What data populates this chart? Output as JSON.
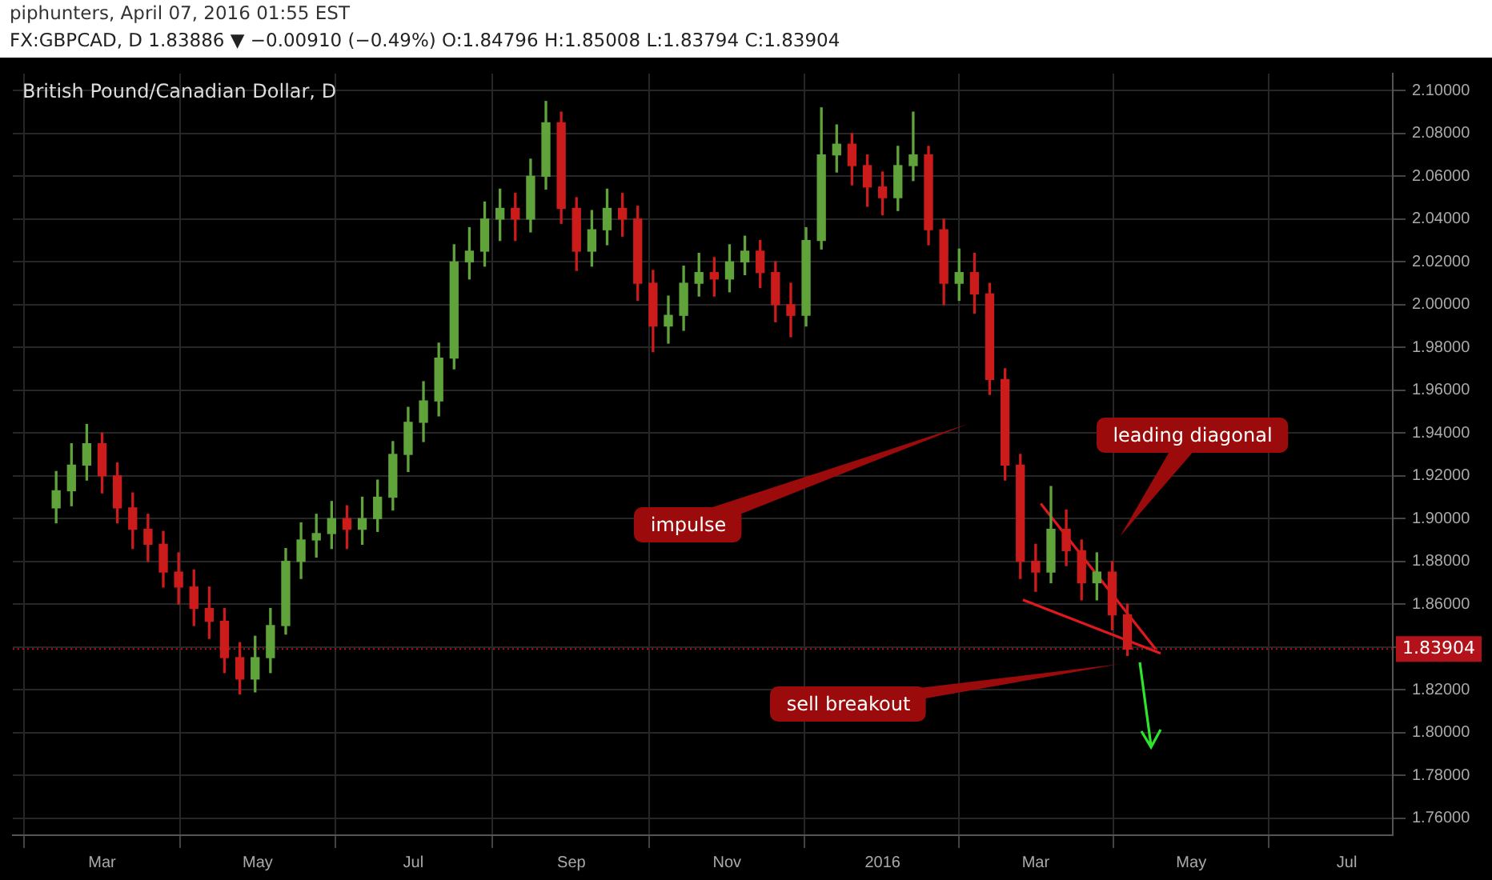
{
  "chart_data": {
    "type": "candlestick",
    "title": "FX:GBPCAD, D 1.83886 ▼ −0.00910 (−0.49%) O:1.84796 H:1.85008 L:1.83794 C:1.83904",
    "subtitle": "British Pound/Canadian Dollar, D",
    "x": [
      "2015-02-11",
      "2015-02-17",
      "2015-02-23",
      "2015-03-01",
      "2015-03-07",
      "2015-03-13",
      "2015-03-19",
      "2015-03-25",
      "2015-03-31",
      "2015-04-06",
      "2015-04-12",
      "2015-04-18",
      "2015-04-24",
      "2015-04-30",
      "2015-05-06",
      "2015-05-12",
      "2015-05-18",
      "2015-05-24",
      "2015-05-30",
      "2015-06-05",
      "2015-06-11",
      "2015-06-17",
      "2015-06-23",
      "2015-06-29",
      "2015-07-05",
      "2015-07-11",
      "2015-07-17",
      "2015-07-23",
      "2015-07-29",
      "2015-08-04",
      "2015-08-10",
      "2015-08-16",
      "2015-08-22",
      "2015-08-28",
      "2015-09-03",
      "2015-09-09",
      "2015-09-15",
      "2015-09-21",
      "2015-09-27",
      "2015-10-03",
      "2015-10-09",
      "2015-10-15",
      "2015-10-21",
      "2015-10-27",
      "2015-11-02",
      "2015-11-08",
      "2015-11-14",
      "2015-11-20",
      "2015-11-26",
      "2015-12-02",
      "2015-12-08",
      "2015-12-14",
      "2015-12-20",
      "2015-12-26",
      "2016-01-01",
      "2016-01-07",
      "2016-01-13",
      "2016-01-19",
      "2016-01-25",
      "2016-01-31",
      "2016-02-06",
      "2016-02-12",
      "2016-02-18",
      "2016-02-24",
      "2016-03-01",
      "2016-03-07",
      "2016-03-13",
      "2016-03-19",
      "2016-03-25",
      "2016-03-31",
      "2016-04-06"
    ],
    "ohlc": [
      [
        1.905,
        1.922,
        1.898,
        1.913
      ],
      [
        1.913,
        1.935,
        1.906,
        1.925
      ],
      [
        1.925,
        1.944,
        1.918,
        1.935
      ],
      [
        1.935,
        1.94,
        1.912,
        1.92
      ],
      [
        1.92,
        1.926,
        1.898,
        1.905
      ],
      [
        1.905,
        1.912,
        1.886,
        1.895
      ],
      [
        1.895,
        1.902,
        1.88,
        1.888
      ],
      [
        1.888,
        1.894,
        1.868,
        1.875
      ],
      [
        1.875,
        1.884,
        1.86,
        1.868
      ],
      [
        1.868,
        1.876,
        1.85,
        1.858
      ],
      [
        1.858,
        1.868,
        1.844,
        1.852
      ],
      [
        1.852,
        1.858,
        1.828,
        1.835
      ],
      [
        1.835,
        1.842,
        1.818,
        1.825
      ],
      [
        1.825,
        1.845,
        1.819,
        1.835
      ],
      [
        1.835,
        1.858,
        1.828,
        1.85
      ],
      [
        1.85,
        1.886,
        1.846,
        1.88
      ],
      [
        1.88,
        1.898,
        1.872,
        1.89
      ],
      [
        1.89,
        1.902,
        1.882,
        1.893
      ],
      [
        1.893,
        1.908,
        1.886,
        1.9
      ],
      [
        1.9,
        1.906,
        1.886,
        1.895
      ],
      [
        1.895,
        1.91,
        1.888,
        1.9
      ],
      [
        1.9,
        1.918,
        1.894,
        1.91
      ],
      [
        1.91,
        1.936,
        1.904,
        1.93
      ],
      [
        1.93,
        1.952,
        1.922,
        1.945
      ],
      [
        1.945,
        1.964,
        1.936,
        1.955
      ],
      [
        1.955,
        1.982,
        1.948,
        1.975
      ],
      [
        1.975,
        2.028,
        1.97,
        2.02
      ],
      [
        2.02,
        2.036,
        2.012,
        2.025
      ],
      [
        2.025,
        2.048,
        2.018,
        2.04
      ],
      [
        2.04,
        2.054,
        2.03,
        2.045
      ],
      [
        2.045,
        2.052,
        2.03,
        2.04
      ],
      [
        2.04,
        2.068,
        2.034,
        2.06
      ],
      [
        2.06,
        2.095,
        2.054,
        2.085
      ],
      [
        2.085,
        2.09,
        2.038,
        2.045
      ],
      [
        2.045,
        2.05,
        2.016,
        2.025
      ],
      [
        2.025,
        2.044,
        2.018,
        2.035
      ],
      [
        2.035,
        2.054,
        2.028,
        2.045
      ],
      [
        2.045,
        2.052,
        2.032,
        2.04
      ],
      [
        2.04,
        2.046,
        2.002,
        2.01
      ],
      [
        2.01,
        2.016,
        1.978,
        1.99
      ],
      [
        1.99,
        2.004,
        1.982,
        1.995
      ],
      [
        1.995,
        2.018,
        1.988,
        2.01
      ],
      [
        2.01,
        2.024,
        2.004,
        2.015
      ],
      [
        2.015,
        2.022,
        2.004,
        2.012
      ],
      [
        2.012,
        2.028,
        2.006,
        2.02
      ],
      [
        2.02,
        2.032,
        2.014,
        2.025
      ],
      [
        2.025,
        2.03,
        2.008,
        2.015
      ],
      [
        2.015,
        2.02,
        1.992,
        2.0
      ],
      [
        2.0,
        2.01,
        1.985,
        1.995
      ],
      [
        1.995,
        2.036,
        1.99,
        2.03
      ],
      [
        2.03,
        2.092,
        2.026,
        2.07
      ],
      [
        2.07,
        2.084,
        2.062,
        2.075
      ],
      [
        2.075,
        2.08,
        2.056,
        2.065
      ],
      [
        2.065,
        2.07,
        2.046,
        2.055
      ],
      [
        2.055,
        2.062,
        2.042,
        2.05
      ],
      [
        2.05,
        2.074,
        2.044,
        2.065
      ],
      [
        2.065,
        2.09,
        2.058,
        2.07
      ],
      [
        2.07,
        2.074,
        2.028,
        2.035
      ],
      [
        2.035,
        2.04,
        2.0,
        2.01
      ],
      [
        2.01,
        2.026,
        2.002,
        2.015
      ],
      [
        2.015,
        2.024,
        1.996,
        2.005
      ],
      [
        2.005,
        2.01,
        1.958,
        1.965
      ],
      [
        1.965,
        1.97,
        1.918,
        1.925
      ],
      [
        1.925,
        1.93,
        1.872,
        1.88
      ],
      [
        1.88,
        1.888,
        1.866,
        1.875
      ],
      [
        1.875,
        1.915,
        1.87,
        1.895
      ],
      [
        1.895,
        1.904,
        1.878,
        1.885
      ],
      [
        1.885,
        1.89,
        1.862,
        1.87
      ],
      [
        1.87,
        1.884,
        1.862,
        1.875
      ],
      [
        1.875,
        1.88,
        1.848,
        1.855
      ],
      [
        1.855,
        1.86,
        1.836,
        1.839
      ]
    ],
    "colors": [
      "#5fa33a",
      "#5fa33a",
      "#5fa33a",
      "#cc1b1b",
      "#cc1b1b",
      "#cc1b1b",
      "#cc1b1b",
      "#cc1b1b",
      "#cc1b1b",
      "#cc1b1b",
      "#cc1b1b",
      "#cc1b1b",
      "#cc1b1b",
      "#5fa33a",
      "#5fa33a",
      "#5fa33a",
      "#5fa33a",
      "#5fa33a",
      "#5fa33a",
      "#cc1b1b",
      "#5fa33a",
      "#5fa33a",
      "#5fa33a",
      "#5fa33a",
      "#5fa33a",
      "#5fa33a",
      "#5fa33a",
      "#5fa33a",
      "#5fa33a",
      "#5fa33a",
      "#cc1b1b",
      "#5fa33a",
      "#5fa33a",
      "#cc1b1b",
      "#cc1b1b",
      "#5fa33a",
      "#5fa33a",
      "#cc1b1b",
      "#cc1b1b",
      "#cc1b1b",
      "#5fa33a",
      "#5fa33a",
      "#5fa33a",
      "#cc1b1b",
      "#5fa33a",
      "#5fa33a",
      "#cc1b1b",
      "#cc1b1b",
      "#cc1b1b",
      "#5fa33a",
      "#5fa33a",
      "#5fa33a",
      "#cc1b1b",
      "#cc1b1b",
      "#cc1b1b",
      "#5fa33a",
      "#5fa33a",
      "#cc1b1b",
      "#cc1b1b",
      "#5fa33a",
      "#cc1b1b",
      "#cc1b1b",
      "#cc1b1b",
      "#cc1b1b",
      "#cc1b1b",
      "#5fa33a",
      "#cc1b1b",
      "#cc1b1b",
      "#5fa33a",
      "#cc1b1b",
      "#cc1b1b"
    ],
    "series": [
      {
        "type": "line",
        "color": "#e0191f",
        "x": [
          "2016-03-03",
          "2016-04-17"
        ],
        "values": [
          1.907,
          1.839
        ]
      },
      {
        "type": "line",
        "color": "#e0191f",
        "x": [
          "2016-02-25",
          "2016-04-19"
        ],
        "values": [
          1.862,
          1.837
        ]
      }
    ],
    "xlim": [
      "2015-01-25",
      "2016-07-19"
    ],
    "xticks": [
      {
        "value": "2015-03-01",
        "label": "Mar"
      },
      {
        "value": "2015-05-01",
        "label": "May"
      },
      {
        "value": "2015-07-01",
        "label": "Jul"
      },
      {
        "value": "2015-09-01",
        "label": "Sep"
      },
      {
        "value": "2015-11-01",
        "label": "Nov"
      },
      {
        "value": "2016-01-01",
        "label": "2016"
      },
      {
        "value": "2016-03-01",
        "label": "Mar"
      },
      {
        "value": "2016-05-01",
        "label": "May"
      },
      {
        "value": "2016-07-01",
        "label": "Jul"
      }
    ],
    "ylim": [
      1.752,
      2.108
    ],
    "yticks": [
      {
        "value": 1.76,
        "label": "1.76000"
      },
      {
        "value": 1.78,
        "label": "1.78000"
      },
      {
        "value": 1.8,
        "label": "1.80000"
      },
      {
        "value": 1.82,
        "label": "1.82000"
      },
      {
        "value": 1.84,
        "label": null
      },
      {
        "value": 1.86,
        "label": "1.86000"
      },
      {
        "value": 1.88,
        "label": "1.88000"
      },
      {
        "value": 1.9,
        "label": "1.90000"
      },
      {
        "value": 1.92,
        "label": "1.92000"
      },
      {
        "value": 1.94,
        "label": "1.94000"
      },
      {
        "value": 1.96,
        "label": "1.96000"
      },
      {
        "value": 1.98,
        "label": "1.98000"
      },
      {
        "value": 2.0,
        "label": "2.00000"
      },
      {
        "value": 2.02,
        "label": "2.02000"
      },
      {
        "value": 2.04,
        "label": "2.04000"
      },
      {
        "value": 2.06,
        "label": "2.06000"
      },
      {
        "value": 2.08,
        "label": "2.08000"
      },
      {
        "value": 2.1,
        "label": "2.10000"
      }
    ],
    "grid": true,
    "ref_lines": [
      {
        "axis": "y",
        "value": 1.83904,
        "label": "1.83904",
        "color": "#b3121a",
        "line_style": "dotted"
      }
    ],
    "annotations": [
      "piphunters, April 07, 2016 01:55 EST",
      "impulse",
      "leading diagonal",
      "sell breakout"
    ]
  }
}
